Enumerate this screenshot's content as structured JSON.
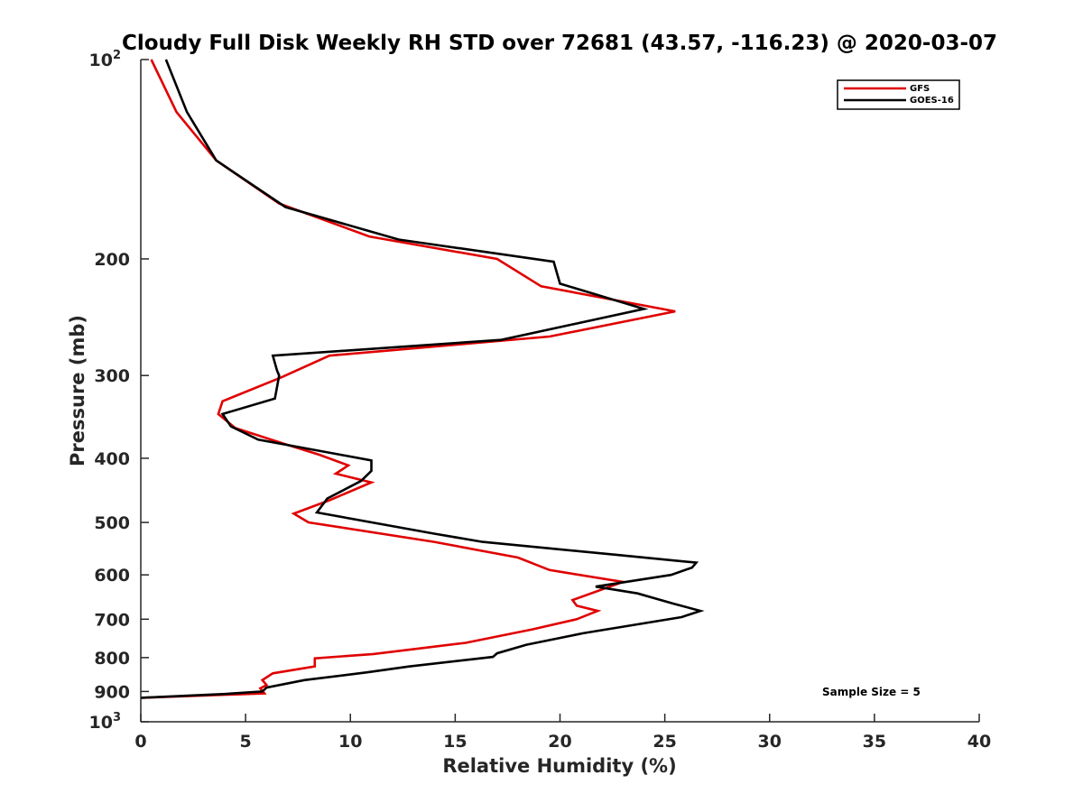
{
  "chart_data": {
    "type": "line",
    "title": "Cloudy Full Disk Weekly RH STD over 72681 (43.57, -116.23) @ 2020-03-07",
    "xlabel": "Relative Humidity (%)",
    "ylabel": "Pressure (mb)",
    "xlim": [
      0,
      40
    ],
    "ylim": [
      100,
      1000
    ],
    "y_scale": "log",
    "y_reversed": true,
    "x_ticks": [
      0,
      5,
      10,
      15,
      20,
      25,
      30,
      35,
      40
    ],
    "x_tick_labels": [
      "0",
      "5",
      "10",
      "15",
      "20",
      "25",
      "30",
      "35",
      "40"
    ],
    "y_ticks": [
      100,
      200,
      300,
      400,
      500,
      600,
      700,
      800,
      900,
      1000
    ],
    "y_tick_labels": [
      "10²",
      "200",
      "300",
      "400",
      "500",
      "600",
      "700",
      "800",
      "900",
      "10³"
    ],
    "grid": false,
    "legend_position": "top-right",
    "annotation": "Sample Size = 5",
    "series": [
      {
        "name": "GFS",
        "color": "#e00000",
        "x": [
          0.5,
          1.7,
          3.6,
          6.6,
          10.9,
          17.0,
          19.1,
          25.5,
          19.5,
          9.0,
          6.7,
          3.9,
          3.7,
          4.5,
          6.8,
          8.5,
          9.9,
          9.3,
          11.0,
          9.0,
          7.3,
          8.0,
          14.0,
          18.0,
          19.5,
          23.0,
          20.6,
          20.8,
          21.8,
          20.8,
          18.7,
          15.5,
          11.1,
          8.3,
          8.3,
          6.3,
          5.8,
          6.0,
          5.7,
          5.9,
          0.0
        ],
        "y": [
          100,
          120,
          142,
          165,
          185,
          200,
          220,
          240,
          262,
          280,
          302,
          328,
          343,
          360,
          380,
          395,
          410,
          422,
          435,
          463,
          485,
          500,
          535,
          565,
          590,
          615,
          655,
          668,
          680,
          700,
          725,
          760,
          790,
          802,
          825,
          845,
          865,
          880,
          890,
          906,
          920
        ]
      },
      {
        "name": "GOES-16",
        "color": "#000000",
        "x": [
          1.2,
          2.2,
          3.6,
          6.9,
          12.3,
          19.7,
          20.0,
          24.0,
          17.2,
          6.3,
          6.5,
          6.6,
          6.4,
          3.9,
          4.3,
          5.6,
          9.5,
          11.0,
          11.0,
          10.5,
          8.9,
          8.4,
          14.0,
          16.3,
          22.8,
          26.5,
          26.3,
          25.3,
          21.7,
          23.7,
          25.4,
          26.7,
          25.8,
          21.1,
          18.4,
          17.0,
          16.8,
          12.8,
          10.8,
          7.8,
          6.0,
          5.8,
          4.0,
          0.0
        ],
        "y": [
          100,
          120,
          142,
          167,
          187,
          202,
          218,
          238,
          265,
          280,
          295,
          300,
          325,
          343,
          358,
          375,
          395,
          403,
          418,
          433,
          460,
          483,
          520,
          535,
          560,
          575,
          585,
          600,
          625,
          640,
          663,
          680,
          695,
          735,
          765,
          788,
          798,
          825,
          842,
          865,
          888,
          900,
          908,
          920
        ]
      }
    ]
  }
}
